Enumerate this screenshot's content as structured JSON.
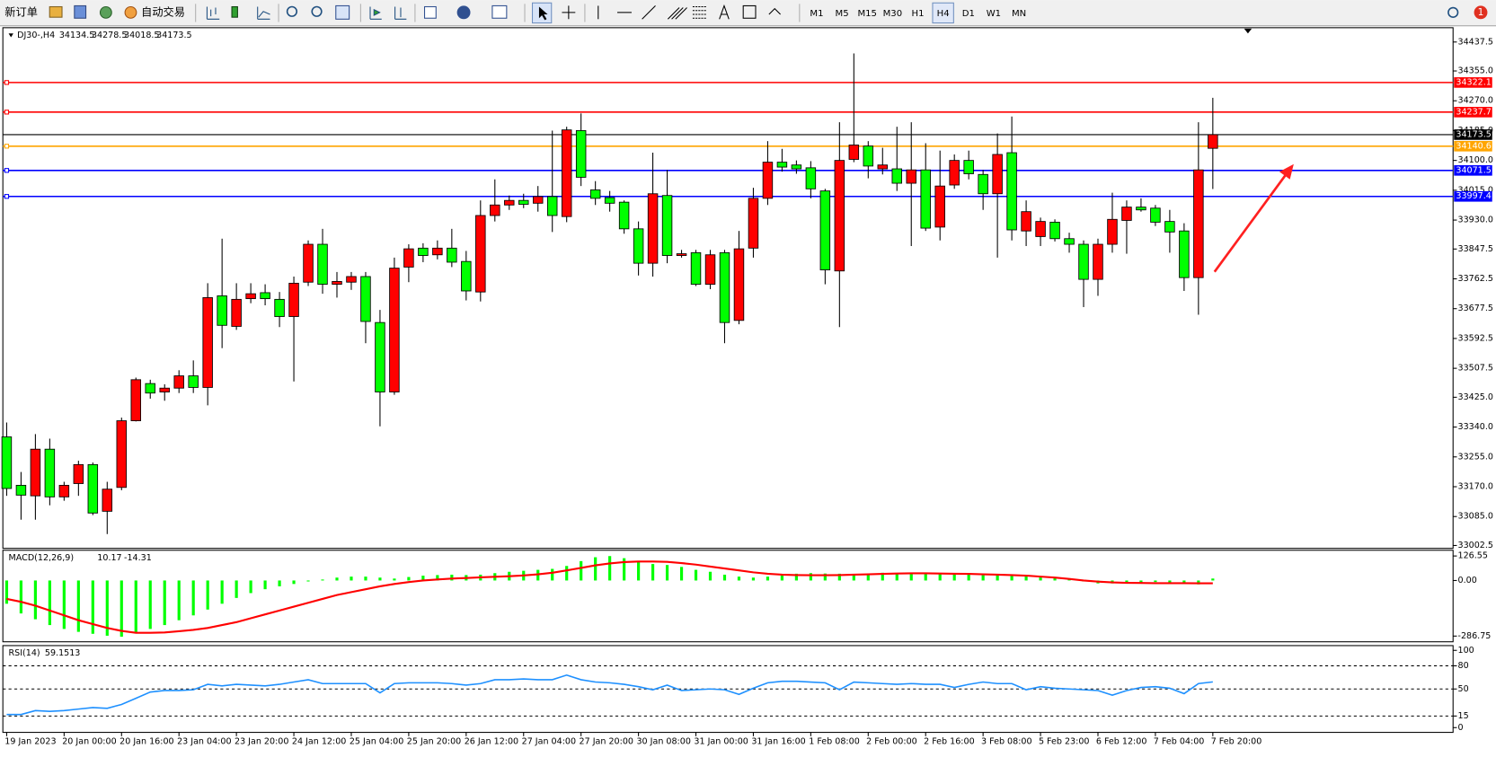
{
  "toolbar": {
    "new_order": "新订单",
    "autotrade": "自动交易",
    "timeframes": [
      "M1",
      "M5",
      "M15",
      "M30",
      "H1",
      "H4",
      "D1",
      "W1",
      "MN"
    ],
    "active_timeframe": "H4",
    "notifications": 1
  },
  "chart_data": [
    {
      "type": "candlestick",
      "title": "DJ30-,H4",
      "up_color": "#ff0000",
      "down_color": "#00ff00",
      "grid": false,
      "categories": [
        "19 Jan 2023",
        null,
        null,
        null,
        "20 Jan 00:00",
        null,
        null,
        null,
        "20 Jan 16:00",
        null,
        null,
        null,
        "23 Jan 04:00",
        null,
        null,
        null,
        "23 Jan 20:00",
        null,
        null,
        null,
        "24 Jan 12:00",
        null,
        null,
        null,
        "25 Jan 04:00",
        null,
        null,
        null,
        "25 Jan 20:00",
        null,
        null,
        null,
        "26 Jan 12:00",
        null,
        null,
        null,
        "27 Jan 04:00",
        null,
        null,
        null,
        "27 Jan 20:00",
        null,
        null,
        null,
        "30 Jan 08:00",
        null,
        null,
        null,
        "31 Jan 00:00",
        null,
        null,
        null,
        "31 Jan 16:00",
        null,
        null,
        null,
        "1 Feb 08:00",
        null,
        null,
        null,
        "2 Feb 00:00",
        null,
        null,
        null,
        "2 Feb 16:00",
        null,
        null,
        null,
        "3 Feb 08:00",
        null,
        null,
        null,
        "5 Feb 23:00",
        null,
        null,
        null,
        "6 Feb 12:00",
        null,
        null,
        null,
        "7 Feb 04:00",
        null,
        null,
        null,
        "7 Feb 20:00"
      ],
      "open": [
        33312,
        33174,
        33144,
        33277,
        33141,
        33179,
        33233,
        33100,
        33168,
        33358,
        33464,
        33440,
        33451,
        33486,
        33453,
        33714,
        33627,
        33706,
        33723,
        33704,
        33655,
        33753,
        33861,
        33747,
        33753,
        33769,
        33638,
        33440,
        33796,
        33850,
        33831,
        33850,
        33812,
        33725,
        33943,
        33973,
        33986,
        33978,
        33997,
        33940,
        34185,
        34016,
        33994,
        33981,
        33905,
        33807,
        34000,
        33829,
        33837,
        33747,
        33837,
        33644,
        33850,
        33992,
        34095,
        34087,
        34079,
        34013,
        33785,
        34103,
        34141,
        34076,
        34076,
        34035,
        34073,
        33910,
        34030,
        34100,
        34060,
        34005,
        34122,
        33899,
        33883,
        33924,
        33877,
        33861,
        33761,
        33861,
        33929,
        33967,
        33964,
        33926,
        33899,
        33766,
        34134.5
      ],
      "high": [
        33353,
        33212,
        33320,
        33307,
        33184,
        33244,
        33239,
        33184,
        33367,
        33481,
        33475,
        33462,
        33502,
        33530,
        33750,
        33877,
        33750,
        33750,
        33747,
        33725,
        33769,
        33872,
        33905,
        33782,
        33782,
        33782,
        33674,
        33823,
        33861,
        33864,
        33872,
        33905,
        33842,
        33986,
        34046,
        34000,
        34005,
        34027,
        34185,
        34196,
        34234,
        34041,
        34013,
        33986,
        33926,
        34122,
        34073,
        33845,
        33845,
        33845,
        33845,
        33899,
        34022,
        34155,
        34133,
        34100,
        34098,
        34019,
        34209,
        34405,
        34155,
        34136,
        34196,
        34209,
        34149,
        34128,
        34117,
        34128,
        34073,
        34177,
        34225,
        33986,
        33937,
        33932,
        33894,
        33872,
        33877,
        34008,
        33986,
        33992,
        33973,
        33959,
        33921,
        34209,
        34278.5
      ],
      "low": [
        33144,
        33076,
        33076,
        33117,
        33130,
        33144,
        33089,
        33035,
        33160,
        33356,
        33421,
        33415,
        33437,
        33437,
        33402,
        33565,
        33617,
        33693,
        33687,
        33625,
        33470,
        33742,
        33720,
        33709,
        33731,
        33579,
        33342,
        33432,
        33753,
        33810,
        33818,
        33796,
        33701,
        33698,
        33926,
        33959,
        33964,
        33954,
        33896,
        33924,
        34027,
        33973,
        33954,
        33891,
        33772,
        33769,
        33807,
        33823,
        33742,
        33733,
        33579,
        33633,
        33823,
        33973,
        34068,
        34062,
        33992,
        33747,
        33625,
        34095,
        34049,
        34060,
        34013,
        33856,
        33899,
        33872,
        34019,
        34046,
        33959,
        33823,
        33872,
        33856,
        33856,
        33869,
        33837,
        33682,
        33714,
        33837,
        33834,
        33954,
        33913,
        33837,
        33728,
        33660,
        34018.5
      ],
      "close": [
        33165,
        33146,
        33277,
        33141,
        33174,
        33233,
        33095,
        33163,
        33358,
        33475,
        33437,
        33451,
        33486,
        33453,
        33709,
        33630,
        33704,
        33720,
        33706,
        33655,
        33750,
        33861,
        33747,
        33755,
        33769,
        33641,
        33440,
        33793,
        33848,
        33829,
        33850,
        33810,
        33728,
        33943,
        33973,
        33986,
        33975,
        33997,
        33943,
        34187,
        34052,
        33992,
        33978,
        33905,
        33807,
        34005,
        33829,
        33834,
        33747,
        33831,
        33638,
        33848,
        33992,
        34095,
        34081,
        34076,
        34019,
        33788,
        34100,
        34144,
        34084,
        34087,
        34035,
        34073,
        33907,
        34027,
        34100,
        34062,
        34005,
        34117,
        33902,
        33954,
        33926,
        33877,
        33861,
        33761,
        33861,
        33932,
        33967,
        33959,
        33924,
        33896,
        33766,
        34073,
        34173.5
      ],
      "ylim": [
        33002.5,
        34437.5
      ],
      "yticks": [
        {
          "value": 34437.5,
          "label": "34437.5"
        },
        {
          "value": 34355,
          "label": "34355.0"
        },
        {
          "value": 34270,
          "label": "34270.0"
        },
        {
          "value": 34185,
          "label": "34185.0"
        },
        {
          "value": 34100,
          "label": "34100.0"
        },
        {
          "value": 34015,
          "label": "34015.0"
        },
        {
          "value": 33930,
          "label": "33930.0"
        },
        {
          "value": 33847.5,
          "label": "33847.5"
        },
        {
          "value": 33762.5,
          "label": "33762.5"
        },
        {
          "value": 33677.5,
          "label": "33677.5"
        },
        {
          "value": 33592.5,
          "label": "33592.5"
        },
        {
          "value": 33507.5,
          "label": "33507.5"
        },
        {
          "value": 33425,
          "label": "33425.0"
        },
        {
          "value": 33340,
          "label": "33340.0"
        },
        {
          "value": 33255,
          "label": "33255.0"
        },
        {
          "value": 33170,
          "label": "33170.0"
        },
        {
          "value": 33085,
          "label": "33085.0"
        },
        {
          "value": 33002.5,
          "label": "33002.5"
        }
      ],
      "hlines": [
        {
          "value": 34322.1,
          "color": "#ff0000"
        },
        {
          "value": 34237.7,
          "color": "#ff0000"
        },
        {
          "value": 34140.6,
          "color": "#ffa500"
        },
        {
          "value": 34071.5,
          "color": "#0000ff"
        },
        {
          "value": 33997.4,
          "color": "#0000ff"
        }
      ]
    },
    {
      "type": "macd",
      "title": "MACD(12,26,9)",
      "color": "#00ff00",
      "signal_color": "#ff0000",
      "values": [
        -120,
        -170,
        -200,
        -230,
        -250,
        -265,
        -275,
        -285,
        -290,
        -270,
        -250,
        -230,
        -205,
        -180,
        -150,
        -120,
        -90,
        -65,
        -45,
        -30,
        -18,
        -5,
        5,
        15,
        20,
        20,
        15,
        10,
        18,
        25,
        28,
        30,
        28,
        30,
        38,
        45,
        50,
        55,
        60,
        75,
        100,
        120,
        126,
        115,
        100,
        85,
        80,
        70,
        55,
        45,
        30,
        20,
        15,
        20,
        30,
        35,
        38,
        36,
        35,
        30,
        35,
        40,
        38,
        40,
        38,
        35,
        35,
        32,
        30,
        28,
        30,
        25,
        20,
        12,
        5,
        -5,
        -15,
        -15,
        -12,
        -10,
        -8,
        -10,
        -12,
        -20,
        10.17
      ],
      "signal": [
        -95,
        -110,
        -130,
        -155,
        -180,
        -205,
        -225,
        -245,
        -260,
        -270,
        -270,
        -268,
        -262,
        -255,
        -245,
        -230,
        -215,
        -195,
        -175,
        -155,
        -135,
        -115,
        -95,
        -75,
        -60,
        -45,
        -30,
        -18,
        -8,
        0,
        5,
        10,
        13,
        16,
        19,
        22,
        26,
        32,
        40,
        52,
        65,
        78,
        88,
        95,
        98,
        98,
        96,
        90,
        82,
        72,
        62,
        52,
        42,
        35,
        30,
        28,
        27,
        27,
        28,
        30,
        32,
        34,
        36,
        37,
        37,
        36,
        35,
        34,
        32,
        30,
        28,
        25,
        20,
        15,
        8,
        0,
        -6,
        -10,
        -12,
        -13,
        -14,
        -14,
        -14,
        -14.5,
        -14.31
      ],
      "ylim": [
        -286.75,
        126.55
      ],
      "yticks": [
        126.55,
        {
          "value": 0,
          "label": "0.00"
        },
        -286.75
      ]
    },
    {
      "type": "line",
      "title": "RSI(14)",
      "color": "#1e90ff",
      "values": [
        17,
        17,
        22,
        21,
        22,
        24,
        26,
        25,
        30,
        38,
        46,
        48,
        48,
        49,
        56,
        54,
        56,
        55,
        54,
        56,
        59,
        62,
        57,
        57,
        57,
        57,
        45,
        57,
        58,
        58,
        58,
        57,
        55,
        57,
        62,
        62,
        63,
        62,
        62,
        68,
        62,
        59,
        58,
        56,
        53,
        49,
        55,
        48,
        49,
        50,
        49,
        43,
        51,
        58,
        60,
        60,
        59,
        58,
        49,
        59,
        58,
        57,
        56,
        57,
        56,
        56,
        52,
        56,
        59,
        57,
        57,
        49,
        53,
        51,
        50,
        49,
        48,
        42,
        48,
        52,
        53,
        51,
        44,
        57,
        59.1513
      ],
      "ylim": [
        0,
        100
      ],
      "yticks": [
        100,
        80,
        50,
        15,
        0
      ],
      "levels": [
        80,
        50,
        15
      ]
    }
  ]
}
